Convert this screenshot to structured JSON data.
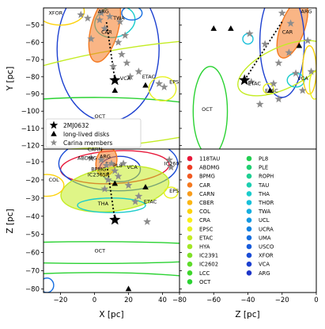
{
  "chart_data": {
    "type": "scatter",
    "panels": {
      "xy": {
        "xlabel": "X [pc]",
        "ylabel": "Y [pc]",
        "xlim": [
          -30,
          50
        ],
        "ylim": [
          -122,
          -40
        ],
        "xticks": [],
        "yticks": [
          -50,
          -60,
          -70,
          -80,
          -90,
          -100,
          -110,
          -120
        ]
      },
      "zy": {
        "xlabel": "",
        "ylabel": "",
        "xlim": [
          -80,
          0
        ],
        "ylim": [
          -122,
          -40
        ],
        "xticks": [],
        "yticks": []
      },
      "xz": {
        "xlabel": "X [pc]",
        "ylabel": "Z [pc]",
        "xlim": [
          -30,
          50
        ],
        "ylim": [
          -82,
          -3
        ],
        "xticks": [
          -20,
          0,
          20,
          40
        ],
        "yticks": [
          -10,
          -20,
          -30,
          -40,
          -50,
          -60,
          -70,
          -80
        ]
      },
      "legend": {
        "xlabel": "Z [pc]",
        "xlim": [
          -80,
          0
        ],
        "xticks": [
          -80,
          -60,
          -40,
          -20,
          0
        ]
      }
    },
    "series_legend": [
      {
        "name": "2MJ0632",
        "marker": "star-large"
      },
      {
        "name": "long-lived disks",
        "marker": "triangle"
      },
      {
        "name": "Carina members",
        "marker": "star-gray"
      }
    ],
    "groups": [
      {
        "name": "118TAU",
        "color": "#e8183a"
      },
      {
        "name": "ABDMG",
        "color": "#ee3d24"
      },
      {
        "name": "BPMG",
        "color": "#f15a22"
      },
      {
        "name": "CAR",
        "color": "#f47920"
      },
      {
        "name": "CARN",
        "color": "#f89c1c"
      },
      {
        "name": "CBER",
        "color": "#fbb614"
      },
      {
        "name": "COL",
        "color": "#fdd20c"
      },
      {
        "name": "CRA",
        "color": "#fbee16"
      },
      {
        "name": "EPSC",
        "color": "#e8f222"
      },
      {
        "name": "ETAC",
        "color": "#c4ec24"
      },
      {
        "name": "HYA",
        "color": "#a2e626"
      },
      {
        "name": "IC2391",
        "color": "#7fe028"
      },
      {
        "name": "IC2602",
        "color": "#5ddb2a"
      },
      {
        "name": "LCC",
        "color": "#3ed62c"
      },
      {
        "name": "OCT",
        "color": "#2ad232"
      },
      {
        "name": "PL8",
        "color": "#24cf52"
      },
      {
        "name": "PLE",
        "color": "#20cf72"
      },
      {
        "name": "ROPH",
        "color": "#1ecf92"
      },
      {
        "name": "TAU",
        "color": "#1cceb0"
      },
      {
        "name": "THA",
        "color": "#1acccc"
      },
      {
        "name": "THOR",
        "color": "#18c0da"
      },
      {
        "name": "TWA",
        "color": "#16aee0"
      },
      {
        "name": "UCL",
        "color": "#1498e2"
      },
      {
        "name": "UCRA",
        "color": "#1482e2"
      },
      {
        "name": "UMA",
        "color": "#166ee0"
      },
      {
        "name": "USCO",
        "color": "#185cdc"
      },
      {
        "name": "XFOR",
        "color": "#1a4cd6"
      },
      {
        "name": "VCA",
        "color": "#1c40d0"
      },
      {
        "name": "ARG",
        "color": "#1e36c8"
      }
    ],
    "target": {
      "name": "2MJ0632",
      "X": 12,
      "Y": -82,
      "Z": -42
    },
    "disks": [
      {
        "X": 12,
        "Y": -88,
        "Z": -22
      },
      {
        "X": 30,
        "Y": -85,
        "Z": -24
      },
      {
        "X": 20,
        "Y": -118,
        "Z": -80
      }
    ],
    "disks_zy": [
      {
        "Z": -60,
        "Y": -52
      },
      {
        "Z": -50,
        "Y": -52
      },
      {
        "Z": -10,
        "Y": -62
      },
      {
        "Z": -27,
        "Y": -88
      }
    ],
    "members_xy": [
      [
        -8,
        -44
      ],
      [
        -4,
        -46
      ],
      [
        3,
        -47
      ],
      [
        6,
        -52
      ],
      [
        9,
        -45
      ],
      [
        15,
        -48
      ],
      [
        18,
        -56
      ],
      [
        -2,
        -58
      ],
      [
        14,
        -60
      ],
      [
        16,
        -67
      ],
      [
        19,
        -72
      ],
      [
        26,
        -77
      ],
      [
        21,
        -80
      ],
      [
        38,
        -84
      ],
      [
        41,
        -86
      ],
      [
        11,
        -74
      ],
      [
        4,
        -43
      ]
    ],
    "members_zy": [
      [
        -39,
        -55
      ],
      [
        -30,
        -61
      ],
      [
        -20,
        -43
      ],
      [
        -15,
        -49
      ],
      [
        -22,
        -72
      ],
      [
        -3,
        -77
      ],
      [
        -12,
        -78
      ],
      [
        -25,
        -84
      ],
      [
        -8,
        -88
      ],
      [
        -38,
        -83
      ],
      [
        -22,
        -93
      ],
      [
        -33,
        -96
      ],
      [
        -5,
        -59
      ],
      [
        -16,
        -66
      ]
    ],
    "members_xz": [
      [
        -2,
        -8
      ],
      [
        4,
        -9
      ],
      [
        7,
        -12
      ],
      [
        10,
        -11
      ],
      [
        12,
        -15
      ],
      [
        14,
        -18
      ],
      [
        17,
        -11
      ],
      [
        8,
        -20
      ],
      [
        6,
        -25
      ],
      [
        20,
        -23
      ],
      [
        24,
        -32
      ],
      [
        26,
        -29
      ],
      [
        44,
        -9
      ],
      [
        45,
        -13
      ],
      [
        31,
        -43
      ]
    ],
    "annotations": {
      "xy": [
        {
          "text": "XFOR",
          "x": -27,
          "y": -44
        },
        {
          "text": "ARG",
          "x": 2,
          "y": -43
        },
        {
          "text": "CAR",
          "x": 4,
          "y": -55
        },
        {
          "text": "TWA",
          "x": 11,
          "y": -47
        },
        {
          "text": "VCA",
          "x": 15,
          "y": -82
        },
        {
          "text": "ETAC",
          "x": 28,
          "y": -81
        },
        {
          "text": "EPS",
          "x": 44,
          "y": -84
        },
        {
          "text": "OCT",
          "x": 0,
          "y": -104
        }
      ],
      "zy": [
        {
          "text": "ARG",
          "x": -9,
          "y": -43
        },
        {
          "text": "CAR",
          "x": -20,
          "y": -55
        },
        {
          "text": "ETAC",
          "x": -40,
          "y": -85
        },
        {
          "text": "EPSC",
          "x": -30,
          "y": -89
        },
        {
          "text": "VCA",
          "x": -11,
          "y": -82
        },
        {
          "text": "OCT",
          "x": -67,
          "y": -100
        }
      ],
      "xz": [
        {
          "text": "CARN",
          "x": -4,
          "y": -4
        },
        {
          "text": "ABDMG",
          "x": -10,
          "y": -9
        },
        {
          "text": "ARG",
          "x": 3,
          "y": -8
        },
        {
          "text": "BPMG",
          "x": -2,
          "y": -15
        },
        {
          "text": "PL8",
          "x": 11,
          "y": -13
        },
        {
          "text": "IC2365R",
          "x": -4,
          "y": -18
        },
        {
          "text": "VCA",
          "x": 19,
          "y": -14
        },
        {
          "text": "IC260",
          "x": 41,
          "y": -12
        },
        {
          "text": "COL",
          "x": -27,
          "y": -21
        },
        {
          "text": "EPS",
          "x": 44,
          "y": -27
        },
        {
          "text": "THA",
          "x": 2,
          "y": -34
        },
        {
          "text": "ETAC",
          "x": 29,
          "y": -33
        },
        {
          "text": "OCT",
          "x": 0,
          "y": -60
        }
      ]
    }
  }
}
